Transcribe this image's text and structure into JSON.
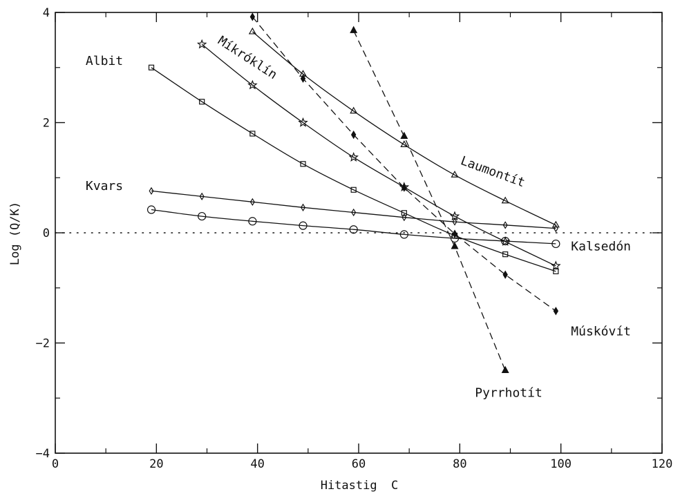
{
  "chart_data": {
    "type": "line",
    "title": "",
    "xlabel": "Hitastig  C",
    "ylabel": "Log (Q/K)",
    "xlim": [
      0,
      120
    ],
    "ylim": [
      -4,
      4
    ],
    "x_ticks": [
      0,
      20,
      40,
      60,
      80,
      100,
      120
    ],
    "y_ticks": [
      -4,
      -2,
      0,
      2,
      4
    ],
    "x_tick_labels": [
      "0",
      "20",
      "40",
      "60",
      "80",
      "100",
      "120"
    ],
    "y_tick_labels": [
      "−4",
      "−2",
      "0",
      "2",
      "4"
    ],
    "grid": false,
    "legend": "none",
    "reference_line": {
      "y": 0,
      "style": "dotted"
    },
    "series": [
      {
        "name": "Albit",
        "marker": "square",
        "line": "solid",
        "x": [
          19,
          29,
          39,
          49,
          59,
          69,
          79,
          89,
          99
        ],
        "y": [
          3.0,
          2.38,
          1.8,
          1.25,
          0.78,
          0.36,
          -0.05,
          -0.39,
          -0.7
        ]
      },
      {
        "name": "Míkróklín",
        "marker": "star",
        "line": "solid",
        "x": [
          29,
          39,
          49,
          59,
          69,
          79,
          89,
          99
        ],
        "y": [
          3.42,
          2.68,
          2.0,
          1.37,
          0.83,
          0.3,
          -0.16,
          -0.6
        ]
      },
      {
        "name": "Laumontít",
        "marker": "triangle-up",
        "line": "solid",
        "x": [
          39,
          49,
          59,
          69,
          79,
          89,
          99
        ],
        "y": [
          3.65,
          2.88,
          2.21,
          1.6,
          1.05,
          0.58,
          0.14
        ]
      },
      {
        "name": "Kvars",
        "marker": "diamond",
        "line": "solid",
        "x": [
          19,
          29,
          39,
          49,
          59,
          69,
          79,
          89,
          99
        ],
        "y": [
          0.76,
          0.66,
          0.56,
          0.46,
          0.37,
          0.28,
          0.2,
          0.14,
          0.08
        ]
      },
      {
        "name": "Kalsedón",
        "marker": "circle",
        "line": "solid",
        "x": [
          19,
          29,
          39,
          49,
          59,
          69,
          79,
          89,
          99
        ],
        "y": [
          0.42,
          0.3,
          0.21,
          0.13,
          0.06,
          -0.03,
          -0.1,
          -0.15,
          -0.2
        ]
      },
      {
        "name": "Múskóvít",
        "marker": "filled-diamond",
        "line": "dashed",
        "x": [
          39,
          49,
          59,
          69,
          79,
          89,
          99
        ],
        "y": [
          3.92,
          2.8,
          1.78,
          0.82,
          -0.02,
          -0.76,
          -1.42
        ]
      },
      {
        "name": "Pyrrhotít",
        "marker": "filled-triangle",
        "line": "dashed",
        "x": [
          59,
          69,
          79,
          89
        ],
        "y": [
          3.67,
          1.75,
          -0.25,
          -2.5
        ]
      }
    ],
    "series_labels": [
      {
        "text": "Albit",
        "x": 6,
        "y": 3.05,
        "rotate": 0
      },
      {
        "text": "Míkróklín",
        "x": 32,
        "y": 3.45,
        "rotate": 33
      },
      {
        "text": "Laumontít",
        "x": 80,
        "y": 1.25,
        "rotate": 20
      },
      {
        "text": "Kvars",
        "x": 6,
        "y": 0.78,
        "rotate": 0
      },
      {
        "text": "Kalsedón",
        "x": 102,
        "y": -0.32,
        "rotate": 0
      },
      {
        "text": "Múskóvít",
        "x": 102,
        "y": -1.86,
        "rotate": 0
      },
      {
        "text": "Pyrrhotít",
        "x": 83,
        "y": -2.98,
        "rotate": 0
      }
    ]
  }
}
